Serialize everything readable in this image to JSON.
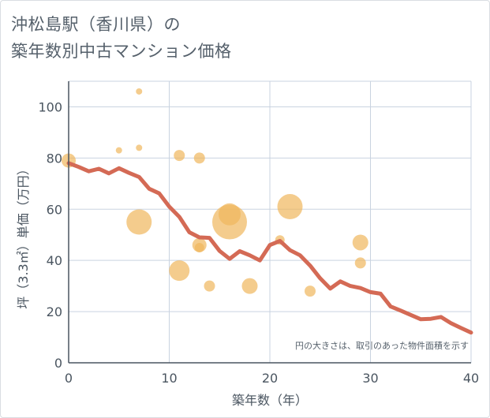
{
  "chart_data": {
    "type": "scatter",
    "title": [
      "沖松島駅（香川県）の",
      "築年数別中古マンション価格"
    ],
    "xlabel": "築年数（年）",
    "ylabel": "坪（3.3㎡）単価（万円）",
    "xlim": [
      0,
      40
    ],
    "ylim": [
      0,
      110
    ],
    "xticks": [
      0,
      10,
      20,
      30,
      40
    ],
    "yticks": [
      0,
      20,
      40,
      60,
      80,
      100
    ],
    "note": "円の大きさは、取引のあった物件面積を示す",
    "colors": {
      "bubble": "#f0b75c",
      "trend": "#d46a55",
      "grid": "#c9d3e0",
      "axis": "#4a5560"
    },
    "bubbles": [
      {
        "x": 0,
        "y": 79,
        "size": 9
      },
      {
        "x": 5,
        "y": 83,
        "size": 4
      },
      {
        "x": 7,
        "y": 106,
        "size": 4
      },
      {
        "x": 7,
        "y": 84,
        "size": 4
      },
      {
        "x": 7,
        "y": 55,
        "size": 16
      },
      {
        "x": 11,
        "y": 81,
        "size": 7
      },
      {
        "x": 11,
        "y": 36,
        "size": 13
      },
      {
        "x": 13,
        "y": 80,
        "size": 7
      },
      {
        "x": 13,
        "y": 46,
        "size": 9
      },
      {
        "x": 13,
        "y": 45,
        "size": 6
      },
      {
        "x": 14,
        "y": 30,
        "size": 7
      },
      {
        "x": 16,
        "y": 55,
        "size": 22
      },
      {
        "x": 16,
        "y": 58,
        "size": 14
      },
      {
        "x": 18,
        "y": 30,
        "size": 10
      },
      {
        "x": 21,
        "y": 48,
        "size": 6
      },
      {
        "x": 22,
        "y": 61,
        "size": 16
      },
      {
        "x": 24,
        "y": 28,
        "size": 7
      },
      {
        "x": 29,
        "y": 47,
        "size": 10
      },
      {
        "x": 29,
        "y": 39,
        "size": 7
      }
    ],
    "trend": {
      "x": [
        0,
        1,
        2,
        3,
        4,
        5,
        6,
        7,
        8,
        9,
        10,
        11,
        12,
        13,
        14,
        15,
        16,
        17,
        18,
        19,
        20,
        21,
        22,
        23,
        24,
        25,
        26,
        27,
        28,
        29,
        30,
        31,
        32,
        33,
        34,
        35,
        36,
        37,
        38,
        39,
        40
      ],
      "y": [
        78,
        76.5,
        74.8,
        75.8,
        74,
        76,
        74.2,
        72.6,
        68,
        66.2,
        61,
        57,
        51,
        49,
        48.8,
        43.7,
        40.6,
        43.6,
        42,
        40,
        46,
        47.6,
        44,
        42,
        38,
        33,
        29,
        31.8,
        30,
        29.2,
        27.6,
        27,
        22,
        20.4,
        18.7,
        17,
        17.2,
        17.9,
        15.5,
        13.6,
        11.8
      ]
    }
  }
}
